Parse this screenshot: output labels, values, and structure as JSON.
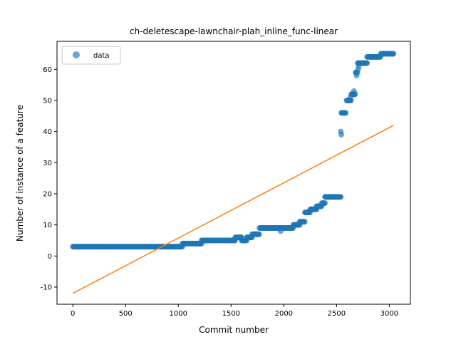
{
  "chart_data": {
    "type": "scatter",
    "title": "ch-deletescape-lawnchair-plah_inline_func-linear",
    "xlabel": "Commit number",
    "ylabel": "Number of instance of a feature",
    "xlim": [
      -150,
      3200
    ],
    "ylim": [
      -15.5,
      69
    ],
    "x_ticks": [
      0,
      500,
      1000,
      1500,
      2000,
      2500,
      3000
    ],
    "y_ticks": [
      -10,
      0,
      10,
      20,
      30,
      40,
      50,
      60
    ],
    "legend": {
      "position": "top-left",
      "entries": [
        "data"
      ]
    },
    "colors": {
      "data": "#1f77b4",
      "fit": "#ff7f0e"
    },
    "series": [
      {
        "name": "data",
        "kind": "scatter",
        "segments": [
          {
            "x_start": 0,
            "x_end": 1040,
            "y": 3
          },
          {
            "x_start": 1040,
            "x_end": 1220,
            "y": 4
          },
          {
            "x_start": 1220,
            "x_end": 1540,
            "y": 5
          },
          {
            "x_start": 1540,
            "x_end": 1600,
            "y": 6
          },
          {
            "x_start": 1600,
            "x_end": 1650,
            "y": 5
          },
          {
            "x_start": 1650,
            "x_end": 1700,
            "y": 6
          },
          {
            "x_start": 1700,
            "x_end": 1770,
            "y": 7
          },
          {
            "x_start": 1770,
            "x_end": 2090,
            "y": 9
          },
          {
            "x_start": 2090,
            "x_end": 2150,
            "y": 10
          },
          {
            "x_start": 2150,
            "x_end": 2200,
            "y": 11
          },
          {
            "x_start": 2200,
            "x_end": 2250,
            "y": 14
          },
          {
            "x_start": 2250,
            "x_end": 2310,
            "y": 15
          },
          {
            "x_start": 2310,
            "x_end": 2360,
            "y": 16
          },
          {
            "x_start": 2360,
            "x_end": 2390,
            "y": 17
          },
          {
            "x_start": 2390,
            "x_end": 2540,
            "y": 19
          },
          {
            "x_start": 2545,
            "x_end": 2590,
            "y": 46
          },
          {
            "x_start": 2595,
            "x_end": 2640,
            "y": 50
          },
          {
            "x_start": 2640,
            "x_end": 2680,
            "y": 52
          },
          {
            "x_start": 2680,
            "x_end": 2700,
            "y": 59
          },
          {
            "x_start": 2700,
            "x_end": 2790,
            "y": 62
          },
          {
            "x_start": 2790,
            "x_end": 2920,
            "y": 64
          },
          {
            "x_start": 2920,
            "x_end": 3040,
            "y": 65
          }
        ],
        "points": [
          [
            1970,
            8
          ],
          [
            2540,
            40
          ],
          [
            2545,
            39
          ],
          [
            2630,
            51
          ],
          [
            2665,
            53
          ],
          [
            2690,
            58
          ],
          [
            2705,
            60
          ],
          [
            2710,
            61
          ]
        ]
      },
      {
        "name": "fit",
        "kind": "line",
        "x": [
          0,
          3040
        ],
        "y": [
          -12,
          42
        ]
      }
    ]
  }
}
